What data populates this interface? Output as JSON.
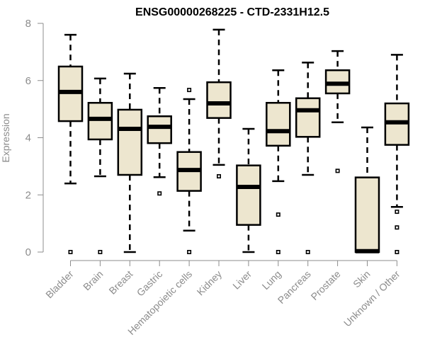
{
  "chart_data": {
    "type": "box",
    "title": "ENSG00000268225 - CTD-2331H12.5",
    "xlabel": "",
    "ylabel": "Expression",
    "ylim": [
      0,
      8
    ],
    "yticks": [
      "0",
      "2",
      "4",
      "6",
      "8"
    ],
    "grid": false,
    "colors": {
      "box_fill": "#ede6cf",
      "box_stroke": "#000000",
      "axis": "#8c8c8c",
      "label": "#8c8c8c"
    },
    "categories": [
      "Bladder",
      "Brain",
      "Breast",
      "Gastric",
      "Hematopoietic cells",
      "Kidney",
      "Liver",
      "Lung",
      "Pancreas",
      "Prostate",
      "Skin",
      "Unknown / Other"
    ],
    "boxes": [
      {
        "name": "Bladder",
        "whisker_low": 2.4,
        "q1": 4.58,
        "median": 5.6,
        "q3": 6.49,
        "whisker_high": 7.6,
        "outliers": [
          0
        ]
      },
      {
        "name": "Brain",
        "whisker_low": 2.65,
        "q1": 3.94,
        "median": 4.66,
        "q3": 5.22,
        "whisker_high": 6.07,
        "outliers": [
          0
        ]
      },
      {
        "name": "Breast",
        "whisker_low": 0,
        "q1": 2.7,
        "median": 4.31,
        "q3": 4.98,
        "whisker_high": 6.24,
        "outliers": []
      },
      {
        "name": "Gastric",
        "whisker_low": 2.62,
        "q1": 3.81,
        "median": 4.38,
        "q3": 4.75,
        "whisker_high": 5.74,
        "outliers": [
          2.05
        ]
      },
      {
        "name": "Hematopoietic cells",
        "whisker_low": 0.75,
        "q1": 2.14,
        "median": 2.87,
        "q3": 3.5,
        "whisker_high": 5.35,
        "outliers": [
          5.67,
          0
        ]
      },
      {
        "name": "Kidney",
        "whisker_low": 3.05,
        "q1": 4.69,
        "median": 5.2,
        "q3": 5.94,
        "whisker_high": 7.78,
        "outliers": [
          2.65
        ]
      },
      {
        "name": "Liver",
        "whisker_low": 0,
        "q1": 0.95,
        "median": 2.28,
        "q3": 3.03,
        "whisker_high": 4.31,
        "outliers": []
      },
      {
        "name": "Lung",
        "whisker_low": 2.48,
        "q1": 3.72,
        "median": 4.23,
        "q3": 5.22,
        "whisker_high": 6.36,
        "outliers": [
          1.31,
          0
        ]
      },
      {
        "name": "Pancreas",
        "whisker_low": 2.7,
        "q1": 4.03,
        "median": 4.96,
        "q3": 5.38,
        "whisker_high": 6.63,
        "outliers": [
          0
        ]
      },
      {
        "name": "Prostate",
        "whisker_low": 4.54,
        "q1": 5.55,
        "median": 5.89,
        "q3": 6.36,
        "whisker_high": 7.03,
        "outliers": [
          2.84
        ]
      },
      {
        "name": "Skin",
        "whisker_low": 0,
        "q1": 0,
        "median": 0.03,
        "q3": 2.61,
        "whisker_high": 4.36,
        "outliers": []
      },
      {
        "name": "Unknown / Other",
        "whisker_low": 1.58,
        "q1": 3.75,
        "median": 4.54,
        "q3": 5.2,
        "whisker_high": 6.9,
        "outliers": [
          1.41,
          0.86,
          0
        ]
      }
    ]
  }
}
